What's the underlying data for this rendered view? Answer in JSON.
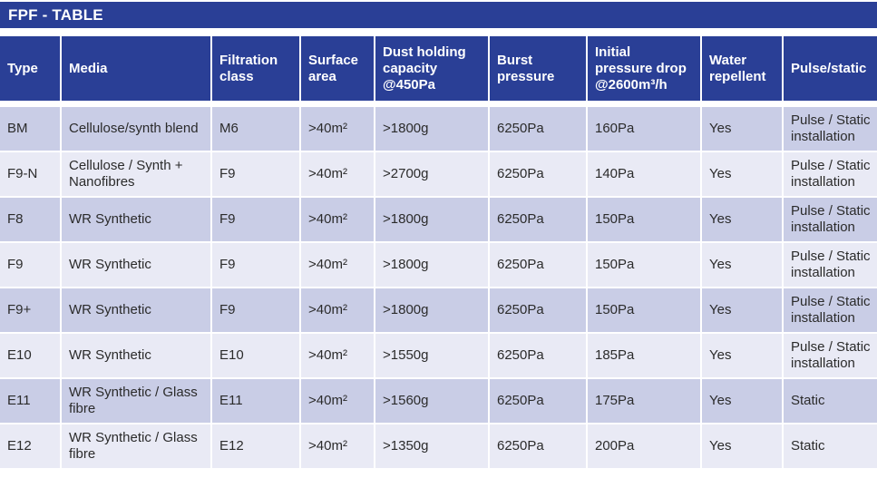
{
  "title": "FPF - TABLE",
  "colors": {
    "header_bg": "#2a3f96",
    "row_odd": "#c9cde6",
    "row_even": "#e9eaf5",
    "header_text": "#ffffff"
  },
  "headers": [
    "Type",
    "Media",
    "Filtration\nclass",
    "Surface\narea",
    "Dust holding\ncapacity\n@450Pa",
    "Burst\npressure",
    "Initial\npressure drop\n@2600m³/h",
    "Water\nrepellent",
    "Pulse/static"
  ],
  "rows": [
    [
      "BM",
      "Cellulose/synth blend",
      "M6",
      ">40m²",
      ">1800g",
      "6250Pa",
      "160Pa",
      "Yes",
      "Pulse / Static\ninstallation"
    ],
    [
      "F9-N",
      "Cellulose / Synth +\nNanofibres",
      "F9",
      ">40m²",
      ">2700g",
      "6250Pa",
      "140Pa",
      "Yes",
      "Pulse / Static\ninstallation"
    ],
    [
      "F8",
      "WR Synthetic",
      "F9",
      ">40m²",
      ">1800g",
      "6250Pa",
      "150Pa",
      "Yes",
      "Pulse / Static\ninstallation"
    ],
    [
      "F9",
      "WR Synthetic",
      "F9",
      ">40m²",
      ">1800g",
      "6250Pa",
      "150Pa",
      "Yes",
      "Pulse / Static\ninstallation"
    ],
    [
      "F9+",
      "WR Synthetic",
      "F9",
      ">40m²",
      ">1800g",
      "6250Pa",
      "150Pa",
      "Yes",
      "Pulse / Static\ninstallation"
    ],
    [
      "E10",
      "WR Synthetic",
      "E10",
      ">40m²",
      ">1550g",
      "6250Pa",
      "185Pa",
      "Yes",
      "Pulse / Static\ninstallation"
    ],
    [
      "E11",
      "WR Synthetic / Glass\nfibre",
      "E11",
      ">40m²",
      ">1560g",
      "6250Pa",
      "175Pa",
      "Yes",
      "Static"
    ],
    [
      "E12",
      "WR Synthetic / Glass\nfibre",
      "E12",
      ">40m²",
      ">1350g",
      "6250Pa",
      "200Pa",
      "Yes",
      "Static"
    ]
  ]
}
